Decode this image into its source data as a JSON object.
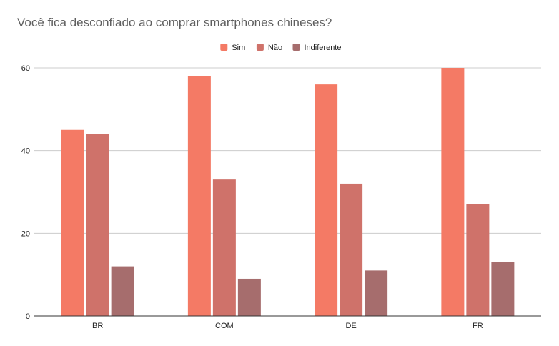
{
  "chart_data": {
    "type": "bar",
    "title": "Você fica desconfiado ao comprar smartphones chineses?",
    "xlabel": "",
    "ylabel": "",
    "categories": [
      "BR",
      "COM",
      "DE",
      "FR"
    ],
    "series": [
      {
        "name": "Sim",
        "color": "#f47a65",
        "values": [
          45,
          58,
          56,
          60
        ]
      },
      {
        "name": "Não",
        "color": "#cf726a",
        "values": [
          44,
          33,
          32,
          27
        ]
      },
      {
        "name": "Indiferente",
        "color": "#a66d6d",
        "values": [
          12,
          9,
          11,
          13
        ]
      }
    ],
    "ylim": [
      0,
      60
    ],
    "yticks": [
      0,
      20,
      40,
      60
    ],
    "grid": true,
    "legend_position": "top-center"
  }
}
